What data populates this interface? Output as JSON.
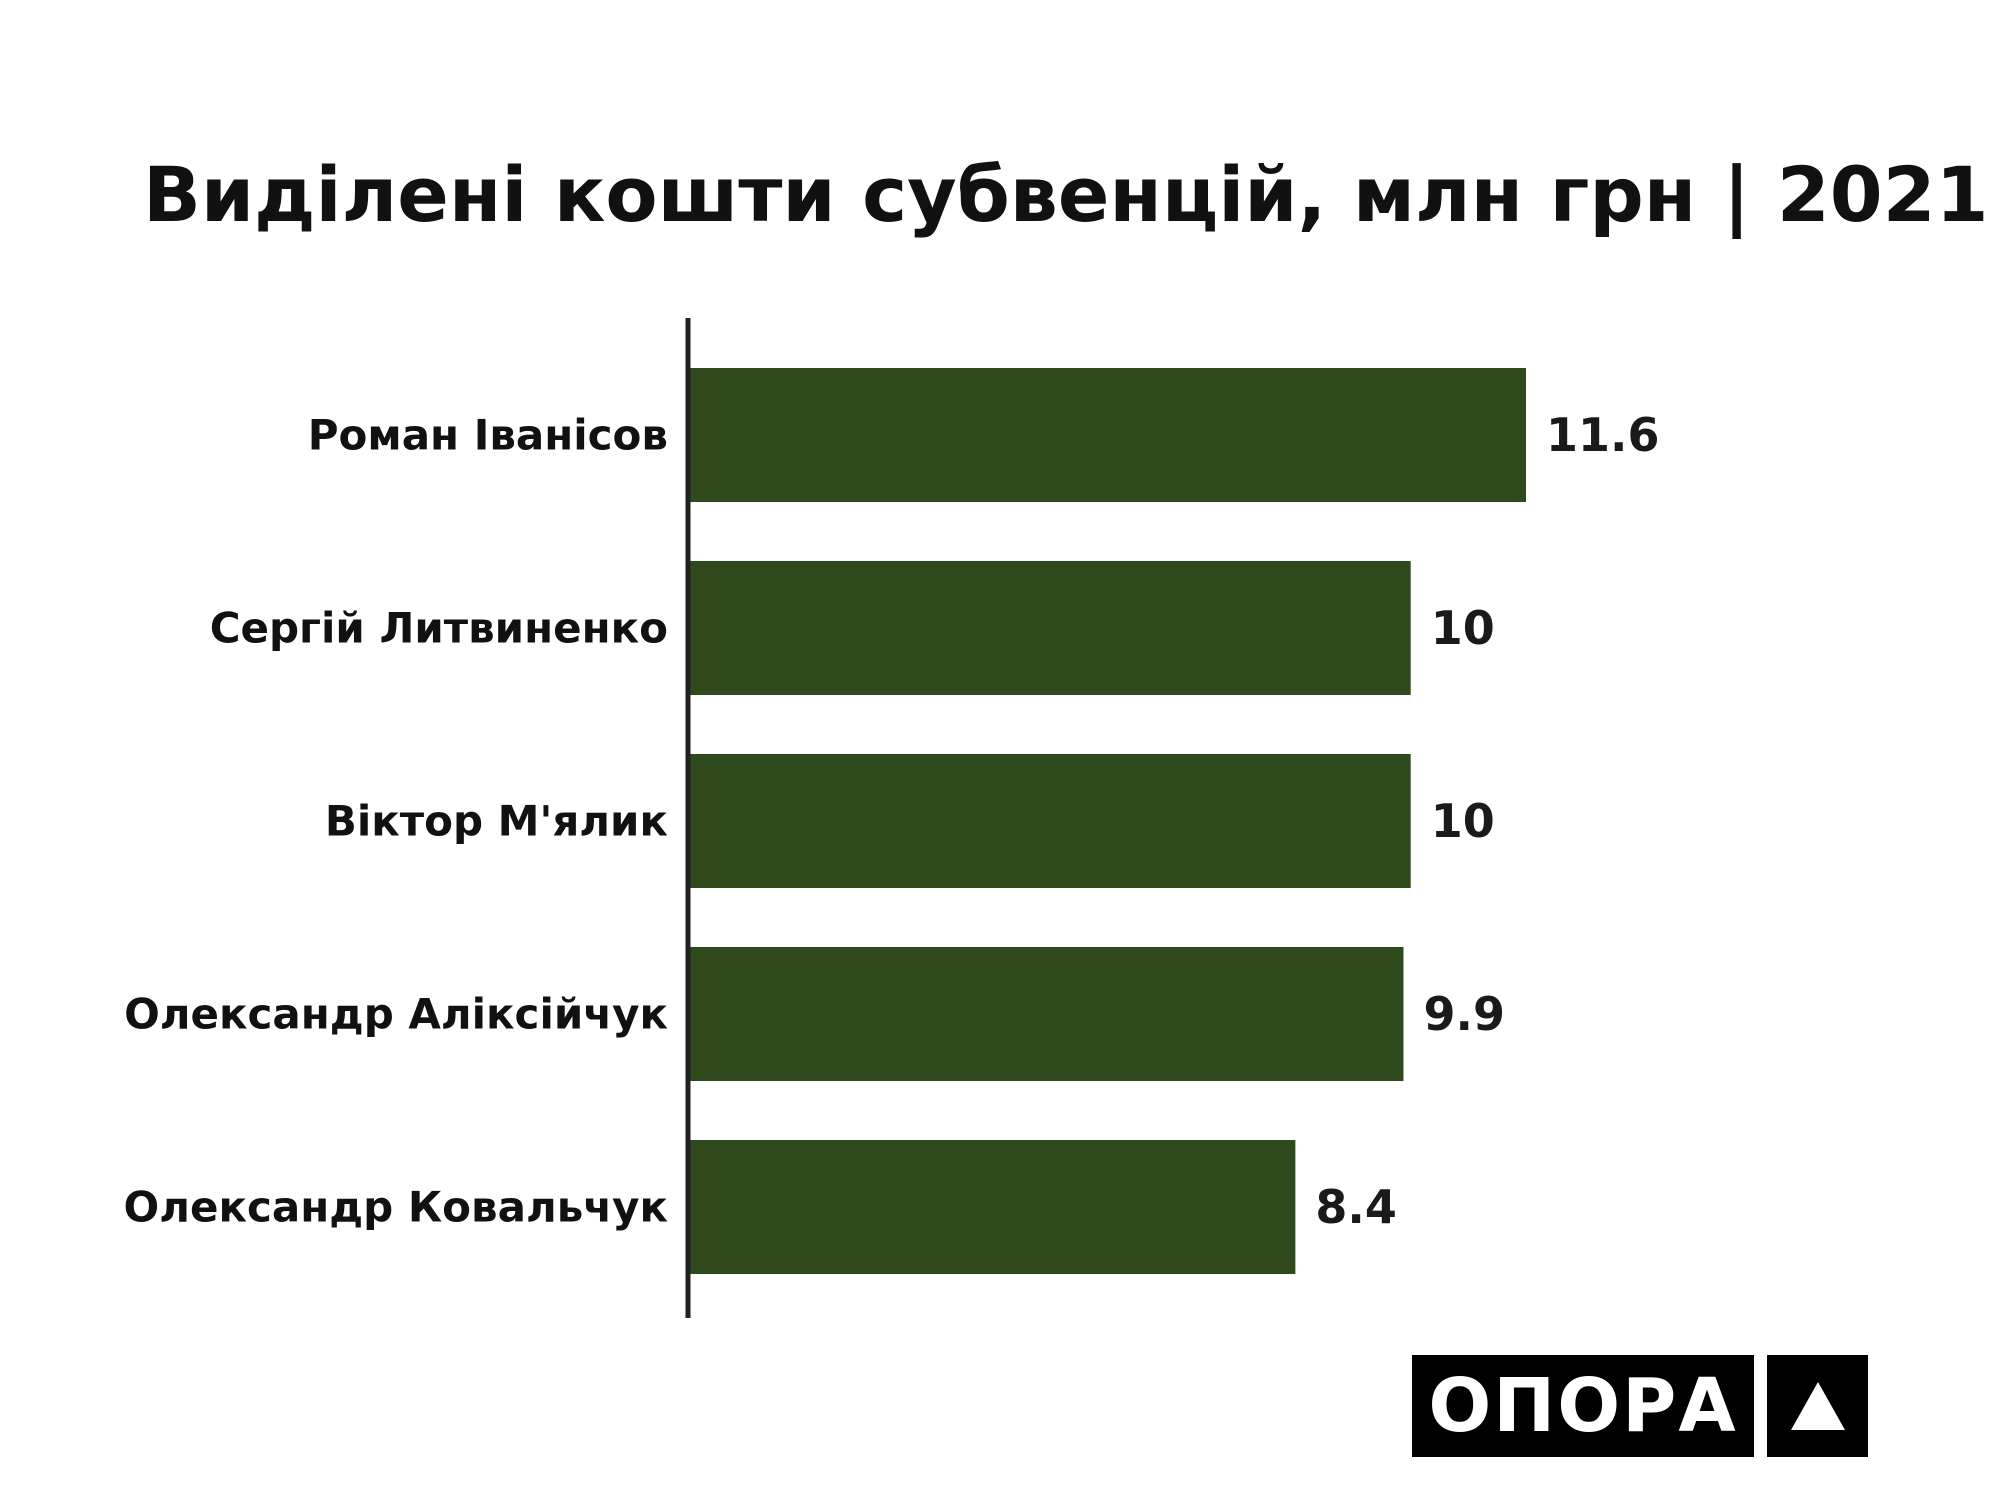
{
  "chart_data": {
    "type": "bar",
    "orientation": "horizontal",
    "title": "Виділені кошти субвенцій, млн грн | 2021",
    "categories": [
      "Роман Іванісов",
      "Сергій Литвиненко",
      "Віктор М'ялик",
      "Олександр Аліксійчук",
      "Олександр Ковальчук"
    ],
    "values": [
      11.6,
      10,
      10,
      9.9,
      8.4
    ],
    "value_labels": [
      "11.6",
      "10",
      "10",
      "9.9",
      "8.4"
    ],
    "xlim": [
      0,
      11.6
    ],
    "bar_color": "#2e4a1c",
    "axis_color": "#222222",
    "grid": false,
    "legend": "none"
  },
  "logo": {
    "text": "ОПОРА",
    "icon": "triangle-icon"
  }
}
